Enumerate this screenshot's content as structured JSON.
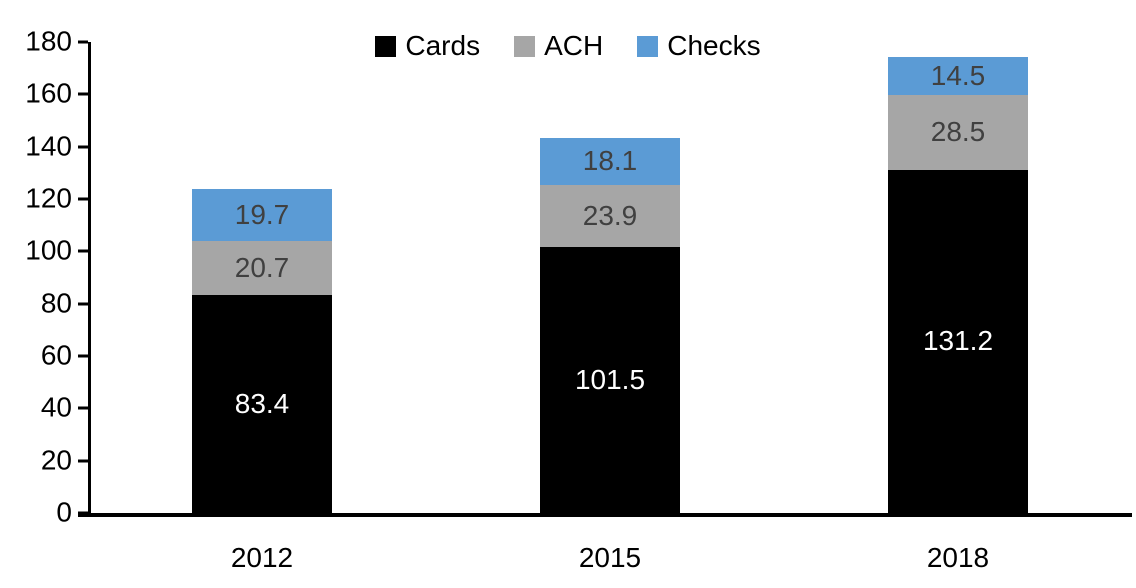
{
  "chart_data": {
    "type": "bar",
    "stacked": true,
    "title": "",
    "xlabel": "",
    "ylabel": "",
    "categories": [
      "2012",
      "2015",
      "2018"
    ],
    "series": [
      {
        "name": "Cards",
        "color": "#000000",
        "label_color": "#ffffff",
        "values": [
          83.4,
          101.5,
          131.2
        ]
      },
      {
        "name": "ACH",
        "color": "#a6a6a6",
        "label_color": "#404040",
        "values": [
          20.7,
          23.9,
          28.5
        ]
      },
      {
        "name": "Checks",
        "color": "#5b9bd5",
        "label_color": "#404040",
        "values": [
          19.7,
          18.1,
          14.5
        ]
      }
    ],
    "totals": [
      123.8,
      143.5,
      174.2
    ],
    "ylim": [
      0,
      180
    ],
    "ytick_step": 20,
    "yticks": [
      0,
      20,
      40,
      60,
      80,
      100,
      120,
      140,
      160,
      180
    ],
    "grid": false,
    "legend_position": "top",
    "axis_color": "#000000",
    "background_color": "#ffffff"
  }
}
